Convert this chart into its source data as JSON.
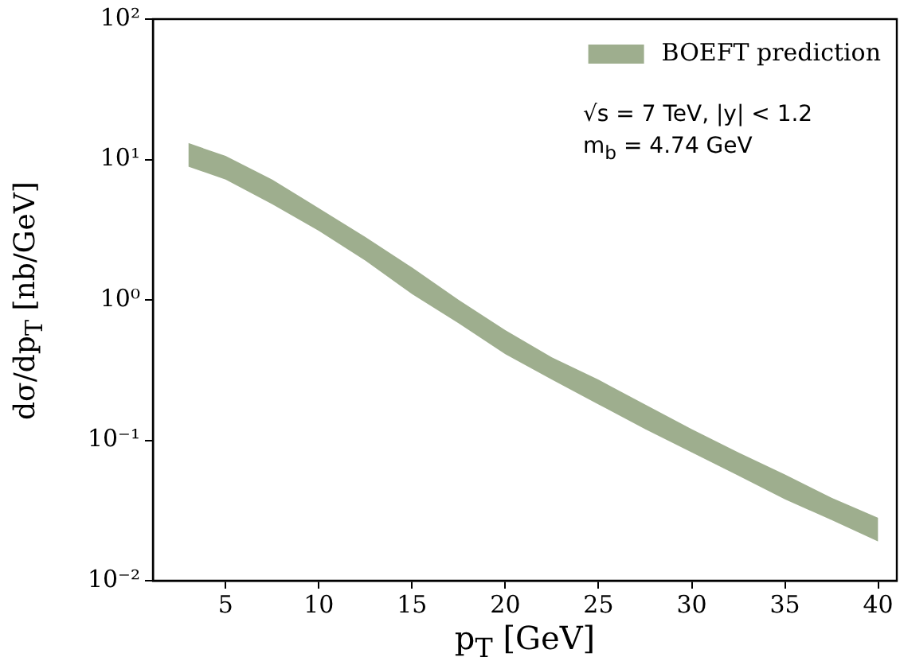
{
  "chart_data": {
    "type": "area",
    "xlabel": "p$_{T}$ [GeV]",
    "ylabel": "dσ/dp$_{T}$ [nb/GeV]",
    "annotations": [
      "√s = 7 TeV, |y| < 1.2",
      "m$_{b}$ = 4.74 GeV"
    ],
    "x": [
      3,
      5,
      7.5,
      10,
      12.5,
      15,
      17.5,
      20,
      22.5,
      25,
      27.5,
      30,
      32.5,
      35,
      37.5,
      40
    ],
    "series": [
      {
        "name": "BOEFT prediction",
        "color": "#9eae8e",
        "values": [
          null,
          null,
          null,
          null,
          null,
          null,
          null,
          null,
          null,
          null,
          null,
          null,
          null,
          null,
          null,
          null
        ],
        "lower": [
          8.9,
          7.2,
          4.8,
          3.1,
          1.9,
          1.1,
          0.68,
          0.41,
          0.27,
          0.18,
          0.12,
          0.082,
          0.056,
          0.038,
          0.027,
          0.019
        ],
        "upper": [
          13.1,
          10.6,
          7.2,
          4.5,
          2.8,
          1.7,
          1.0,
          0.61,
          0.39,
          0.27,
          0.18,
          0.12,
          0.082,
          0.057,
          0.039,
          0.028
        ]
      }
    ],
    "xlim": [
      1.1,
      41
    ],
    "xticks": [
      5,
      10,
      15,
      20,
      25,
      30,
      35,
      40
    ],
    "ylim": [
      0.01,
      100
    ],
    "yticks": [
      {
        "value": 0.01,
        "label": "10⁻²"
      },
      {
        "value": 0.1,
        "label": "10⁻¹"
      },
      {
        "value": 1,
        "label": "10⁰"
      },
      {
        "value": 10,
        "label": "10¹"
      },
      {
        "value": 100,
        "label": "10²"
      }
    ],
    "log": "y",
    "grid": false,
    "legend": "top right",
    "marker": "none"
  }
}
